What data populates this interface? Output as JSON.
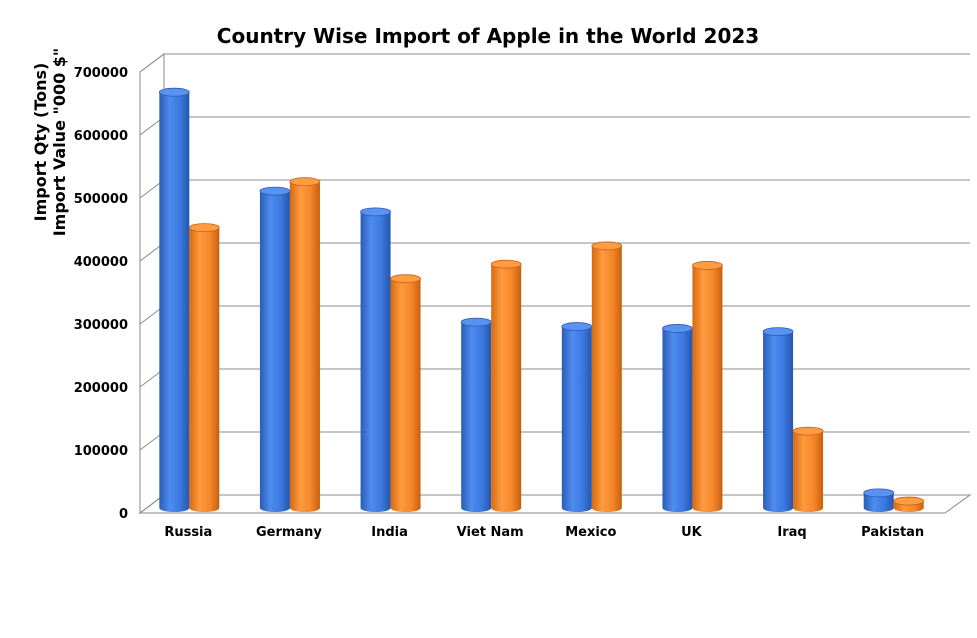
{
  "chart_data": {
    "type": "bar",
    "title": "Country Wise Import of Apple in the World 2023",
    "ylabel_lines": [
      "Import Qty (Tons)",
      "Import Value \"000 $\""
    ],
    "categories": [
      "Russia",
      "Germany",
      "India",
      "Viet Nam",
      "Mexico",
      "UK",
      "Iraq",
      "Pakistan"
    ],
    "series": [
      {
        "color": "#3b78e0",
        "values": [
          660000,
          503000,
          470000,
          295000,
          288000,
          285000,
          280000,
          24000
        ]
      },
      {
        "color": "#f4862a",
        "values": [
          445000,
          518000,
          364000,
          387000,
          416000,
          385000,
          122000,
          11000
        ]
      }
    ],
    "ylim": [
      0,
      700000
    ],
    "yticks": [
      {
        "value": 0,
        "label": "0"
      },
      {
        "value": 100000,
        "label": "100000"
      },
      {
        "value": 200000,
        "label": "200000"
      },
      {
        "value": 300000,
        "label": "300000"
      },
      {
        "value": 400000,
        "label": "400000"
      },
      {
        "value": 500000,
        "label": "500000"
      },
      {
        "value": 600000,
        "label": "600000"
      },
      {
        "value": 700000,
        "label": "700000"
      }
    ],
    "grid": true,
    "legend": "none"
  }
}
